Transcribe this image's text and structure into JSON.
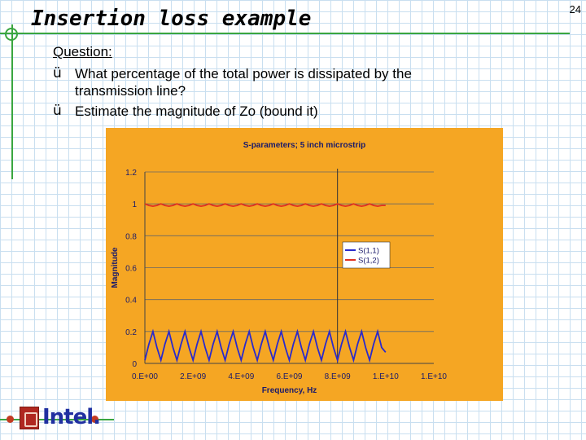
{
  "slide": {
    "title": "Insertion loss example",
    "page_number": "24",
    "question_label": "Question:",
    "bullets": [
      {
        "check": "ü",
        "lines": [
          "What percentage of the total power is dissipated by the",
          "transmission line?"
        ]
      },
      {
        "check": "ü",
        "lines": [
          "Estimate the magnitude of Zo (bound it)"
        ]
      }
    ],
    "logo_text": "Intel."
  },
  "colors": {
    "accent_green": "#3aa640",
    "chart_bg": "#f5a623",
    "s11": "#2a2acc",
    "s12": "#e03020"
  },
  "chart_data": {
    "type": "line",
    "title": "S-parameters; 5 inch microstrip",
    "xlabel": "Frequency, Hz",
    "ylabel": "Magnitude",
    "xlim": [
      0,
      12000000000
    ],
    "ylim": [
      0,
      1.2
    ],
    "x_ticks": [
      0,
      2000000000,
      4000000000,
      6000000000,
      8000000000,
      10000000000,
      12000000000
    ],
    "x_tick_labels": [
      "0.E+00",
      "2.E+09",
      "4.E+09",
      "6.E+09",
      "8.E+09",
      "1.E+10",
      "1.E+10"
    ],
    "y_ticks": [
      0,
      0.2,
      0.4,
      0.6,
      0.8,
      1,
      1.2
    ],
    "y_tick_labels": [
      "0",
      "0.2",
      "0.4",
      "0.6",
      "0.8",
      "1",
      "1.2"
    ],
    "grid": {
      "horizontal": true
    },
    "vertical_marker_x": 8000000000,
    "legend_position": "right",
    "series": [
      {
        "name": "S(1,1)",
        "x": [
          0,
          166000000,
          333000000,
          500000000,
          667000000,
          833000000,
          1000000000,
          1167000000,
          1333000000,
          1500000000,
          1667000000,
          1833000000,
          2000000000,
          2167000000,
          2333000000,
          2500000000,
          2667000000,
          2833000000,
          3000000000,
          3167000000,
          3333000000,
          3500000000,
          3667000000,
          3833000000,
          4000000000,
          4167000000,
          4333000000,
          4500000000,
          4667000000,
          4833000000,
          5000000000,
          5167000000,
          5333000000,
          5500000000,
          5667000000,
          5833000000,
          6000000000,
          6167000000,
          6333000000,
          6500000000,
          6667000000,
          6833000000,
          7000000000,
          7167000000,
          7333000000,
          7500000000,
          7667000000,
          7833000000,
          8000000000,
          8167000000,
          8333000000,
          8500000000,
          8667000000,
          8833000000,
          9000000000,
          9167000000,
          9333000000,
          9500000000,
          9667000000,
          9833000000,
          10000000000
        ],
        "y": [
          0.02,
          0.12,
          0.2,
          0.1,
          0.02,
          0.12,
          0.2,
          0.1,
          0.02,
          0.12,
          0.2,
          0.1,
          0.02,
          0.12,
          0.2,
          0.1,
          0.02,
          0.12,
          0.2,
          0.1,
          0.02,
          0.12,
          0.2,
          0.1,
          0.02,
          0.12,
          0.2,
          0.1,
          0.02,
          0.12,
          0.2,
          0.1,
          0.02,
          0.12,
          0.2,
          0.1,
          0.02,
          0.12,
          0.2,
          0.1,
          0.02,
          0.12,
          0.2,
          0.1,
          0.02,
          0.12,
          0.2,
          0.1,
          0.02,
          0.12,
          0.2,
          0.1,
          0.02,
          0.12,
          0.2,
          0.1,
          0.02,
          0.12,
          0.2,
          0.1,
          0.07
        ]
      },
      {
        "name": "S(1,2)",
        "x": [
          0,
          166000000,
          333000000,
          500000000,
          667000000,
          833000000,
          1000000000,
          1167000000,
          1333000000,
          1500000000,
          1667000000,
          1833000000,
          2000000000,
          2167000000,
          2333000000,
          2500000000,
          2667000000,
          2833000000,
          3000000000,
          3167000000,
          3333000000,
          3500000000,
          3667000000,
          3833000000,
          4000000000,
          4167000000,
          4333000000,
          4500000000,
          4667000000,
          4833000000,
          5000000000,
          5167000000,
          5333000000,
          5500000000,
          5667000000,
          5833000000,
          6000000000,
          6167000000,
          6333000000,
          6500000000,
          6667000000,
          6833000000,
          7000000000,
          7167000000,
          7333000000,
          7500000000,
          7667000000,
          7833000000,
          8000000000,
          8167000000,
          8333000000,
          8500000000,
          8667000000,
          8833000000,
          9000000000,
          9167000000,
          9333000000,
          9500000000,
          9667000000,
          9833000000,
          10000000000
        ],
        "y": [
          1.0,
          0.99,
          0.985,
          0.99,
          1.0,
          0.99,
          0.985,
          0.99,
          1.0,
          0.99,
          0.985,
          0.99,
          1.0,
          0.99,
          0.985,
          0.99,
          1.0,
          0.99,
          0.985,
          0.99,
          1.0,
          0.99,
          0.985,
          0.99,
          1.0,
          0.99,
          0.985,
          0.99,
          1.0,
          0.99,
          0.985,
          0.99,
          1.0,
          0.99,
          0.985,
          0.99,
          1.0,
          0.99,
          0.985,
          0.99,
          1.0,
          0.99,
          0.985,
          0.99,
          1.0,
          0.99,
          0.985,
          0.99,
          1.0,
          0.99,
          0.985,
          0.99,
          1.0,
          0.99,
          0.985,
          0.99,
          1.0,
          0.99,
          0.985,
          0.99,
          0.99
        ]
      }
    ]
  }
}
